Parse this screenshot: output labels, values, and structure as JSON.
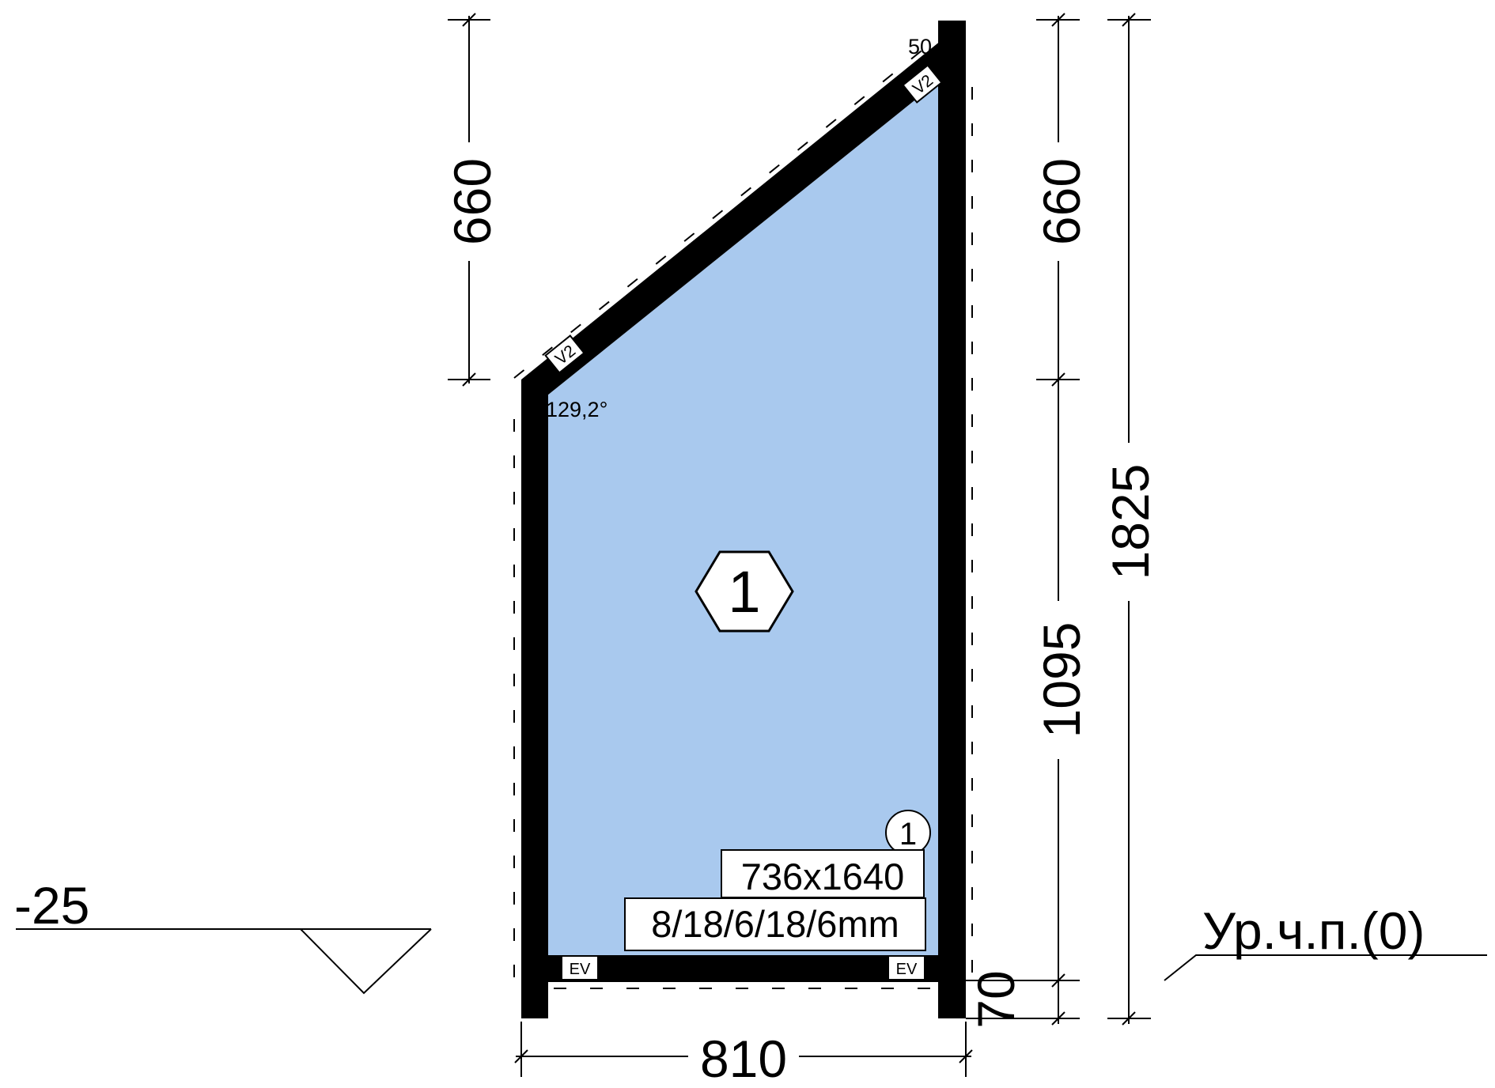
{
  "dimensions": {
    "left_top": "660",
    "right_top": "660",
    "right_middle": "1095",
    "right_bottom": "70",
    "right_total": "1825",
    "bottom_width": "810"
  },
  "angles": {
    "top_right": "50,8°",
    "left_top": "129,2°"
  },
  "glazing_unit": {
    "marker": "1",
    "position_tag": "1",
    "size": "736x1640",
    "formula": "8/18/6/18/6mm"
  },
  "tags": {
    "upper_left_seal": "V2",
    "upper_right_seal": "V2",
    "bottom_left_block": "EV",
    "bottom_right_block": "EV"
  },
  "levels": {
    "left": "-25",
    "right": "Ур.ч.п.(0)"
  },
  "colors": {
    "glass": "#a9c9ee",
    "frame": "#000000"
  }
}
